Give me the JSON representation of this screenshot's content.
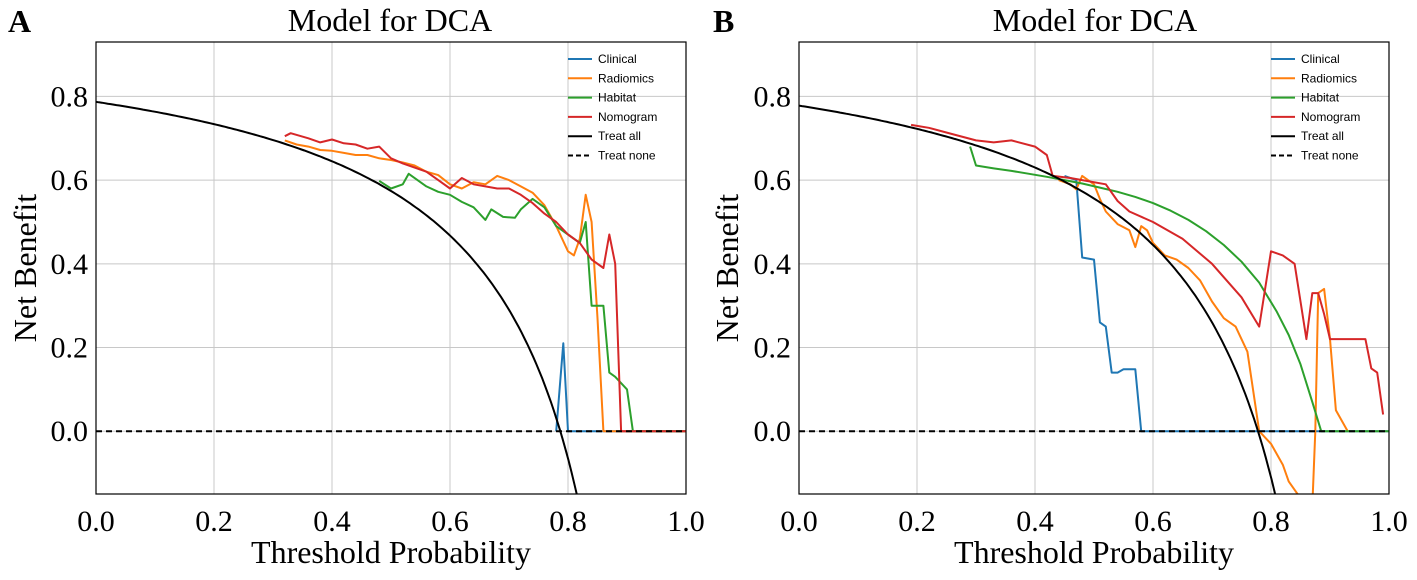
{
  "colors": {
    "Clinical": "#1f77b4",
    "Radiomics": "#ff7f0e",
    "Habitat": "#2ca02c",
    "Nomogram": "#d62728",
    "Treat all": "#000000",
    "Treat none": "#000000",
    "grid": "#c8c8c8"
  },
  "chart_data": [
    {
      "panel_label": "A",
      "type": "line",
      "title": "Model for DCA",
      "xlabel": "Threshold Probability",
      "ylabel": "Net Benefit",
      "xlim": [
        0,
        1
      ],
      "ylim": [
        -0.15,
        0.93
      ],
      "xticks": [
        0.0,
        0.2,
        0.4,
        0.6,
        0.8,
        1.0
      ],
      "xtick_labels": [
        "0.0",
        "0.2",
        "0.4",
        "0.6",
        "0.8",
        "1.0"
      ],
      "yticks": [
        0.0,
        0.2,
        0.4,
        0.6,
        0.8
      ],
      "ytick_labels": [
        "0.0",
        "0.2",
        "0.4",
        "0.6",
        "0.8"
      ],
      "grid": true,
      "legend_position": "top-right",
      "prevalence": 0.787,
      "series": [
        {
          "name": "Clinical",
          "style": "solid",
          "x": [
            0.78,
            0.792,
            0.8,
            0.81,
            1.0
          ],
          "y": [
            0.0,
            0.21,
            0.0,
            0.0,
            0.0
          ]
        },
        {
          "name": "Radiomics",
          "style": "solid",
          "x": [
            0.32,
            0.34,
            0.36,
            0.38,
            0.4,
            0.42,
            0.44,
            0.46,
            0.48,
            0.5,
            0.52,
            0.54,
            0.56,
            0.58,
            0.6,
            0.62,
            0.64,
            0.66,
            0.68,
            0.7,
            0.72,
            0.74,
            0.76,
            0.78,
            0.79,
            0.8,
            0.81,
            0.82,
            0.83,
            0.84,
            0.85,
            0.86,
            0.87,
            0.88,
            1.0
          ],
          "y": [
            0.695,
            0.685,
            0.68,
            0.672,
            0.67,
            0.665,
            0.66,
            0.66,
            0.652,
            0.648,
            0.642,
            0.635,
            0.62,
            0.612,
            0.59,
            0.58,
            0.595,
            0.59,
            0.61,
            0.6,
            0.585,
            0.57,
            0.54,
            0.49,
            0.46,
            0.43,
            0.42,
            0.46,
            0.565,
            0.5,
            0.27,
            0.0,
            0.0,
            0.0,
            0.0
          ]
        },
        {
          "name": "Habitat",
          "style": "solid",
          "x": [
            0.48,
            0.5,
            0.52,
            0.53,
            0.56,
            0.58,
            0.6,
            0.62,
            0.64,
            0.66,
            0.67,
            0.69,
            0.71,
            0.72,
            0.74,
            0.76,
            0.78,
            0.8,
            0.82,
            0.83,
            0.84,
            0.86,
            0.87,
            0.88,
            0.9,
            0.91,
            1.0
          ],
          "y": [
            0.598,
            0.58,
            0.59,
            0.615,
            0.585,
            0.572,
            0.565,
            0.548,
            0.535,
            0.505,
            0.53,
            0.512,
            0.51,
            0.53,
            0.555,
            0.535,
            0.49,
            0.47,
            0.45,
            0.5,
            0.3,
            0.3,
            0.14,
            0.13,
            0.1,
            0.0,
            0.0
          ]
        },
        {
          "name": "Nomogram",
          "style": "solid",
          "x": [
            0.32,
            0.33,
            0.36,
            0.38,
            0.4,
            0.42,
            0.44,
            0.46,
            0.48,
            0.5,
            0.52,
            0.54,
            0.56,
            0.58,
            0.6,
            0.62,
            0.64,
            0.66,
            0.68,
            0.7,
            0.72,
            0.74,
            0.76,
            0.78,
            0.8,
            0.82,
            0.84,
            0.86,
            0.87,
            0.88,
            0.89,
            0.9,
            0.91,
            1.0
          ],
          "y": [
            0.705,
            0.712,
            0.7,
            0.69,
            0.697,
            0.688,
            0.685,
            0.675,
            0.68,
            0.652,
            0.64,
            0.63,
            0.62,
            0.6,
            0.58,
            0.605,
            0.59,
            0.585,
            0.58,
            0.58,
            0.565,
            0.545,
            0.52,
            0.5,
            0.47,
            0.45,
            0.41,
            0.39,
            0.47,
            0.4,
            0.0,
            0.0,
            0.0,
            0.0
          ]
        }
      ]
    },
    {
      "panel_label": "B",
      "type": "line",
      "title": "Model for DCA",
      "xlabel": "Threshold Probability",
      "ylabel": "Net Benefit",
      "xlim": [
        0,
        1
      ],
      "ylim": [
        -0.15,
        0.93
      ],
      "xticks": [
        0.0,
        0.2,
        0.4,
        0.6,
        0.8,
        1.0
      ],
      "xtick_labels": [
        "0.0",
        "0.2",
        "0.4",
        "0.6",
        "0.8",
        "1.0"
      ],
      "yticks": [
        0.0,
        0.2,
        0.4,
        0.6,
        0.8
      ],
      "ytick_labels": [
        "0.0",
        "0.2",
        "0.4",
        "0.6",
        "0.8"
      ],
      "grid": true,
      "legend_position": "top-right",
      "prevalence": 0.778,
      "series": [
        {
          "name": "Clinical",
          "style": "solid",
          "x": [
            0.45,
            0.47,
            0.48,
            0.5,
            0.51,
            0.52,
            0.53,
            0.54,
            0.55,
            0.56,
            0.57,
            0.58,
            1.0
          ],
          "y": [
            0.61,
            0.6,
            0.415,
            0.41,
            0.26,
            0.25,
            0.14,
            0.14,
            0.148,
            0.148,
            0.148,
            0.0,
            0.0
          ]
        },
        {
          "name": "Radiomics",
          "style": "solid",
          "x": [
            0.44,
            0.46,
            0.47,
            0.48,
            0.5,
            0.51,
            0.52,
            0.54,
            0.56,
            0.57,
            0.58,
            0.59,
            0.6,
            0.62,
            0.64,
            0.66,
            0.68,
            0.7,
            0.72,
            0.74,
            0.76,
            0.78,
            0.8,
            0.82,
            0.83,
            0.85,
            0.87,
            0.875,
            0.88,
            0.89,
            0.9,
            0.91,
            0.93
          ],
          "y": [
            0.6,
            0.59,
            0.578,
            0.61,
            0.59,
            0.555,
            0.525,
            0.495,
            0.48,
            0.44,
            0.49,
            0.48,
            0.45,
            0.42,
            0.41,
            0.39,
            0.36,
            0.31,
            0.27,
            0.25,
            0.19,
            0.0,
            -0.03,
            -0.08,
            -0.12,
            -0.16,
            -0.18,
            0.0,
            0.33,
            0.34,
            0.22,
            0.05,
            0.0
          ]
        },
        {
          "name": "Habitat",
          "style": "solid",
          "x": [
            0.29,
            0.3,
            0.33,
            0.36,
            0.39,
            0.42,
            0.45,
            0.48,
            0.51,
            0.54,
            0.57,
            0.6,
            0.63,
            0.66,
            0.69,
            0.72,
            0.75,
            0.78,
            0.81,
            0.83,
            0.85,
            0.87,
            0.885,
            1.0
          ],
          "y": [
            0.68,
            0.635,
            0.628,
            0.622,
            0.615,
            0.608,
            0.6,
            0.592,
            0.582,
            0.572,
            0.56,
            0.545,
            0.527,
            0.505,
            0.478,
            0.445,
            0.405,
            0.355,
            0.285,
            0.23,
            0.16,
            0.07,
            0.0,
            0.0
          ]
        },
        {
          "name": "Nomogram",
          "style": "solid",
          "x": [
            0.19,
            0.22,
            0.26,
            0.3,
            0.33,
            0.36,
            0.4,
            0.42,
            0.43,
            0.46,
            0.48,
            0.52,
            0.54,
            0.56,
            0.6,
            0.65,
            0.7,
            0.75,
            0.78,
            0.8,
            0.82,
            0.84,
            0.86,
            0.87,
            0.88,
            0.89,
            0.9,
            0.93,
            0.96,
            0.97,
            0.98,
            0.99
          ],
          "y": [
            0.732,
            0.725,
            0.71,
            0.695,
            0.69,
            0.695,
            0.68,
            0.66,
            0.61,
            0.605,
            0.6,
            0.59,
            0.55,
            0.525,
            0.5,
            0.46,
            0.4,
            0.32,
            0.25,
            0.43,
            0.42,
            0.4,
            0.22,
            0.33,
            0.33,
            0.28,
            0.22,
            0.22,
            0.22,
            0.15,
            0.14,
            0.04
          ]
        }
      ]
    }
  ]
}
